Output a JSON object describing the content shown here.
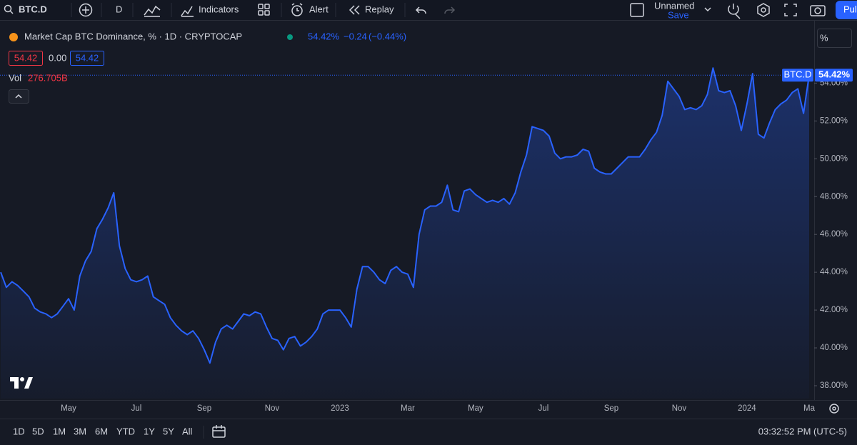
{
  "toolbar": {
    "symbol": "BTC.D",
    "interval": "D",
    "indicators": "Indicators",
    "alert": "Alert",
    "replay": "Replay",
    "layout_name": "Unnamed",
    "save": "Save",
    "publish": "Pul"
  },
  "legend": {
    "title": "Market Cap BTC Dominance, % · 1D · CRYPTOCAP",
    "last": "54.42%",
    "change": "−0.24",
    "change_pct": "(−0.44%)",
    "bid": "54.42",
    "spread": "0.00",
    "ask": "54.42",
    "vol_label": "Vol",
    "vol_value": "276.705B"
  },
  "price_scale_mode": "%",
  "symbol_tag": "BTC.D",
  "last_price_tag": "54.42%",
  "chart_data": {
    "type": "area",
    "color": "#2962ff",
    "grid": false,
    "categories": [
      null,
      null,
      null,
      null,
      null,
      null,
      null,
      null,
      null,
      null,
      null,
      null,
      "May",
      null,
      null,
      null,
      null,
      null,
      null,
      null,
      null,
      null,
      null,
      null,
      "Jul",
      null,
      null,
      null,
      null,
      null,
      null,
      null,
      null,
      null,
      null,
      null,
      "Sep",
      null,
      null,
      null,
      null,
      null,
      null,
      null,
      null,
      null,
      null,
      null,
      "Nov",
      null,
      null,
      null,
      null,
      null,
      null,
      null,
      null,
      null,
      null,
      null,
      "2023",
      null,
      null,
      null,
      null,
      null,
      null,
      null,
      null,
      null,
      null,
      null,
      "Mar",
      null,
      null,
      null,
      null,
      null,
      null,
      null,
      null,
      null,
      null,
      null,
      "May",
      null,
      null,
      null,
      null,
      null,
      null,
      null,
      null,
      null,
      null,
      null,
      "Jul",
      null,
      null,
      null,
      null,
      null,
      null,
      null,
      null,
      null,
      null,
      null,
      "Sep",
      null,
      null,
      null,
      null,
      null,
      null,
      null,
      null,
      null,
      null,
      null,
      "Nov",
      null,
      null,
      null,
      null,
      null,
      null,
      null,
      null,
      null,
      null,
      null,
      "2024",
      null,
      null,
      null,
      null,
      null,
      null,
      null,
      null,
      null,
      null,
      "Ma"
    ],
    "values": [
      44.0,
      43.2,
      43.5,
      43.3,
      43.0,
      42.7,
      42.1,
      41.9,
      41.8,
      41.6,
      41.8,
      42.2,
      42.6,
      42.0,
      43.8,
      44.6,
      45.1,
      46.3,
      46.8,
      47.4,
      48.2,
      45.4,
      44.2,
      43.6,
      43.5,
      43.6,
      43.8,
      42.7,
      42.5,
      42.3,
      41.6,
      41.2,
      40.9,
      40.7,
      40.9,
      40.5,
      39.9,
      39.2,
      40.3,
      41.0,
      41.2,
      41.0,
      41.4,
      41.8,
      41.7,
      41.9,
      41.8,
      41.1,
      40.5,
      40.4,
      39.9,
      40.5,
      40.6,
      40.1,
      40.3,
      40.6,
      41.0,
      41.8,
      42.0,
      42.0,
      42.0,
      41.6,
      41.1,
      43.1,
      44.3,
      44.3,
      44.0,
      43.6,
      43.4,
      44.1,
      44.3,
      44.0,
      43.9,
      43.2,
      46.0,
      47.3,
      47.5,
      47.5,
      47.7,
      48.6,
      47.3,
      47.2,
      48.3,
      48.4,
      48.1,
      47.9,
      47.7,
      47.8,
      47.7,
      47.9,
      47.6,
      48.2,
      49.3,
      50.2,
      51.7,
      51.6,
      51.5,
      51.2,
      50.3,
      50.0,
      50.1,
      50.1,
      50.2,
      50.5,
      50.4,
      49.5,
      49.3,
      49.2,
      49.2,
      49.5,
      49.8,
      50.1,
      50.1,
      50.1,
      50.5,
      51.0,
      51.4,
      52.3,
      54.1,
      53.7,
      53.3,
      52.6,
      52.7,
      52.6,
      52.8,
      53.4,
      54.8,
      53.6,
      53.5,
      53.6,
      52.8,
      51.5,
      52.9,
      54.5,
      51.3,
      51.1,
      51.9,
      52.6,
      52.9,
      53.1,
      53.5,
      53.7,
      52.4,
      54.42
    ],
    "ylim": [
      37.32,
      56.96
    ],
    "yticks": [
      {
        "value": 38,
        "label": "38.00%"
      },
      {
        "value": 40,
        "label": "40.00%"
      },
      {
        "value": 42,
        "label": "42.00%"
      },
      {
        "value": 44,
        "label": "44.00%"
      },
      {
        "value": 46,
        "label": "46.00%"
      },
      {
        "value": 48,
        "label": "48.00%"
      },
      {
        "value": 50,
        "label": "50.00%"
      },
      {
        "value": 52,
        "label": "52.00%"
      },
      {
        "value": 54,
        "label": "54.00%"
      }
    ]
  },
  "bottom_bar": {
    "ranges": [
      "1D",
      "5D",
      "1M",
      "3M",
      "6M",
      "YTD",
      "1Y",
      "5Y",
      "All"
    ],
    "time": "03:32:52 PM (UTC-5)"
  }
}
